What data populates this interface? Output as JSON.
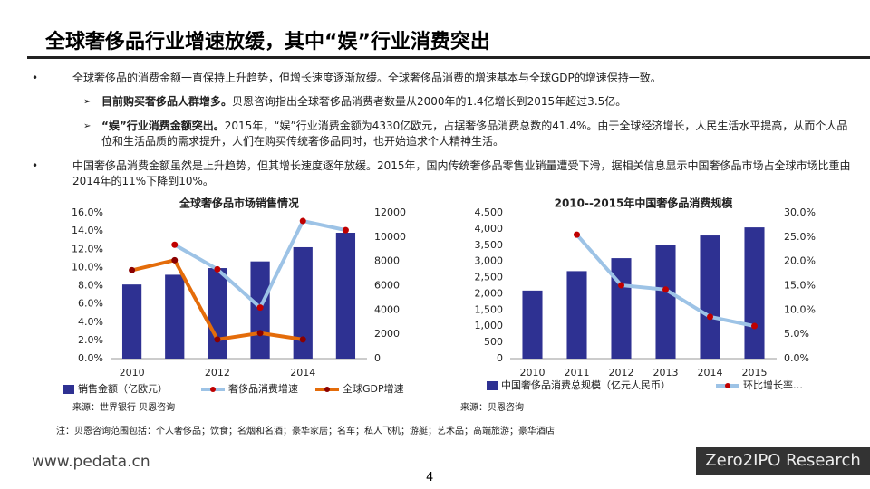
{
  "title": "全球奢侈品行业增速放缓，其中“娱”行业消费突出",
  "bullets": [
    {
      "text": "全球奢侈品的消费金额一直保持上升趋势，但增长速度逐渐放缓。全球奢侈品消费的增速基本与全球GDP的增速保持一致。",
      "sub": [
        {
          "bold": "目前购买奢侈品人群增多。",
          "text": "贝恩咨询指出全球奢侈品消费者数量从2000年的1.4亿增长到2015年超过3.5亿。"
        },
        {
          "bold": "“娱”行业消费金额突出。",
          "text": "2015年，“娱”行业消费金额为4330亿欧元，占据奢侈品消费总数的41.4%。由于全球经济增长，人民生活水平提高，从而个人品位和生活品质的需求提升，人们在购买传统奢侈品同时，也开始追求个人精神生活。"
        }
      ]
    },
    {
      "text": "中国奢侈品消费金额虽然是上升趋势，但其增长速度逐年放缓。2015年，国内传统奢侈品零售业销量遭受下滑，据相关信息显示中国奢侈品市场占全球市场比重由2014年的11%下降到10%。"
    }
  ],
  "chart_data": [
    {
      "type": "bar_line",
      "title": "全球奢侈品市场销售情况",
      "categories": [
        "2010",
        null,
        "2012",
        null,
        "2014",
        null
      ],
      "series": [
        {
          "name": "销售金额（亿欧元）",
          "type": "bar",
          "axis": "y2",
          "color": "#2e3192",
          "values": [
            6100,
            6900,
            7450,
            8000,
            9170,
            10360
          ]
        },
        {
          "name": "奢侈品消费增速",
          "type": "line",
          "axis": "y",
          "color": "#9dc3e6",
          "marker_color": "#c00000",
          "values": [
            null,
            12.5,
            9.8,
            5.6,
            15.1,
            14.1
          ]
        },
        {
          "name": "全球GDP增速",
          "type": "line",
          "axis": "y",
          "color": "#e46c0a",
          "marker_color": "#8b0000",
          "values": [
            9.7,
            10.8,
            2.1,
            2.8,
            2.1,
            null
          ]
        }
      ],
      "ylim": [
        0,
        16
      ],
      "yticks": [
        {
          "value": 0,
          "label": "0.0%"
        },
        {
          "value": 2,
          "label": "2.0%"
        },
        {
          "value": 4,
          "label": "4.0%"
        },
        {
          "value": 6,
          "label": "6.0%"
        },
        {
          "value": 8,
          "label": "8.0%"
        },
        {
          "value": 10,
          "label": "10.0%"
        },
        {
          "value": 12,
          "label": "12.0%"
        },
        {
          "value": 14,
          "label": "14.0%"
        },
        {
          "value": 16,
          "label": "16.0%"
        }
      ],
      "y2lim": [
        0,
        12000
      ],
      "y2ticks": [
        0,
        2000,
        4000,
        6000,
        8000,
        10000,
        12000
      ],
      "source": "来源：世界银行 贝恩咨询"
    },
    {
      "type": "bar_line",
      "title": "2010--2015年中国奢侈品消费规模",
      "categories": [
        "2010",
        "2011",
        "2012",
        "2013",
        "2014",
        "2015"
      ],
      "series": [
        {
          "name": "中国奢侈品消费总规模（亿元人民币）",
          "type": "bar",
          "axis": "y",
          "color": "#2e3192",
          "values": [
            2100,
            2700,
            3100,
            3500,
            3800,
            4050
          ]
        },
        {
          "name": "环比增长率…",
          "type": "line",
          "axis": "y2",
          "color": "#9dc3e6",
          "marker_color": "#c00000",
          "values": [
            null,
            25.5,
            15.1,
            14.2,
            8.6,
            6.7
          ]
        }
      ],
      "ylim": [
        0,
        4500
      ],
      "yticks": [
        0,
        500,
        {
          "value": 1000,
          "label": "1,000"
        },
        {
          "value": 1500,
          "label": "1,500"
        },
        {
          "value": 2000,
          "label": "2,000"
        },
        {
          "value": 2500,
          "label": "2,500"
        },
        {
          "value": 3000,
          "label": "3,000"
        },
        {
          "value": 3500,
          "label": "3,500"
        },
        {
          "value": 4000,
          "label": "4,000"
        },
        {
          "value": 4500,
          "label": "4,500"
        }
      ],
      "y2lim": [
        0,
        30
      ],
      "y2ticks": [
        {
          "value": 0,
          "label": "0.0%"
        },
        {
          "value": 5,
          "label": "5.0%"
        },
        {
          "value": 10,
          "label": "10.0%"
        },
        {
          "value": 15,
          "label": "15.0%"
        },
        {
          "value": 20,
          "label": "20.0%"
        },
        {
          "value": 25,
          "label": "25.0%"
        },
        {
          "value": 30,
          "label": "30.0%"
        }
      ],
      "source": "来源：贝恩咨询"
    }
  ],
  "note": "注：贝恩咨询范围包括：个人奢侈品；饮食；名烟和名酒；豪华家居；名车；私人飞机；游艇；艺术品；高端旅游；豪华酒店",
  "website": "www.pedata.cn",
  "page_number": "4",
  "logo": "Zero2IPO Research"
}
